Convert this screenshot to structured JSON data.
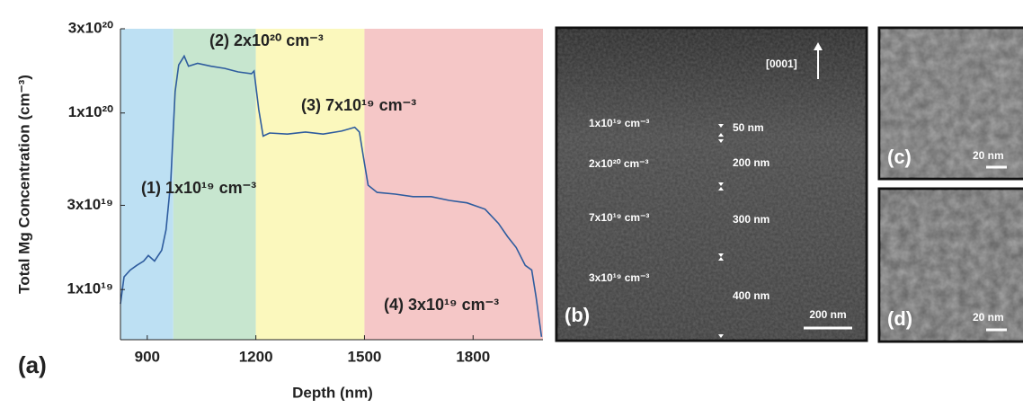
{
  "chart_data": {
    "type": "line",
    "x_label": "Depth (nm)",
    "y_label": "Total Mg Concentration (cm⁻³)",
    "panel_label": "(a)",
    "xlim": [
      826,
      1993
    ],
    "xticks": [
      900,
      1200,
      1500,
      1800
    ],
    "ylim": [
      5.2e+18,
      3e+20
    ],
    "yscale": "log",
    "yticks": [
      {
        "value": 1e+19,
        "label": "1x10¹⁹"
      },
      {
        "value": 3e+19,
        "label": "3x10¹⁹"
      },
      {
        "value": 1e+20,
        "label": "1x10²⁰"
      },
      {
        "value": 3e+20,
        "label": "3x10²⁰"
      }
    ],
    "regions": [
      {
        "start": 826,
        "end": 972,
        "color": "#bde0f3"
      },
      {
        "start": 972,
        "end": 1200,
        "color": "#c7e6cf"
      },
      {
        "start": 1200,
        "end": 1500,
        "color": "#fbf8bd"
      },
      {
        "start": 1500,
        "end": 1993,
        "color": "#f5c7c7"
      }
    ],
    "annotations": [
      "(1) 1x10¹⁹ cm⁻³",
      "(2) 2x10²⁰ cm⁻³",
      "(3) 7x10¹⁹ cm⁻³",
      "(4) 3x10¹⁹ cm⁻³"
    ],
    "color": "#2e5c9e",
    "x": [
      826,
      836,
      853,
      871,
      890,
      903,
      920,
      940,
      952,
      965,
      977,
      987,
      1002,
      1014,
      1039,
      1076,
      1114,
      1151,
      1188,
      1195,
      1208,
      1220,
      1238,
      1287,
      1337,
      1386,
      1436,
      1473,
      1486,
      1498,
      1510,
      1535,
      1585,
      1634,
      1684,
      1734,
      1783,
      1833,
      1870,
      1895,
      1919,
      1944,
      1962,
      1974,
      1989
    ],
    "values": [
      8.3e+18,
      1.18e+19,
      1.29e+19,
      1.37e+19,
      1.45e+19,
      1.56e+19,
      1.45e+19,
      1.67e+19,
      2.18e+19,
      4.13e+19,
      1.32e+20,
      1.87e+20,
      2.1e+20,
      1.84e+20,
      1.91e+20,
      1.84e+20,
      1.79e+20,
      1.71e+20,
      1.67e+20,
      1.73e+20,
      1.05e+20,
      7.4e+19,
      7.7e+19,
      7.6e+19,
      7.8e+19,
      7.6e+19,
      7.9e+19,
      8.3e+19,
      7.8e+19,
      5.5e+19,
      3.9e+19,
      3.55e+19,
      3.47e+19,
      3.36e+19,
      3.36e+19,
      3.2e+19,
      3.1e+19,
      2.85e+19,
      2.37e+19,
      2e+19,
      1.73e+19,
      1.37e+19,
      1.29e+19,
      9.1e+18,
      5.4e+18
    ]
  },
  "micrographs": [
    {
      "label": "(b)",
      "scale_bar": "200 nm",
      "direction": "[0001]",
      "layers": [
        {
          "concentration": "1x10¹⁹ cm⁻³",
          "thickness": "50 nm"
        },
        {
          "concentration": "2x10²⁰ cm⁻³",
          "thickness": "200 nm"
        },
        {
          "concentration": "7x10¹⁹ cm⁻³",
          "thickness": "300 nm"
        },
        {
          "concentration": "3x10¹⁹ cm⁻³",
          "thickness": "400 nm"
        }
      ]
    },
    {
      "label": "(c)",
      "scale_bar": "20 nm"
    },
    {
      "label": "(d)",
      "scale_bar": "20 nm"
    }
  ]
}
